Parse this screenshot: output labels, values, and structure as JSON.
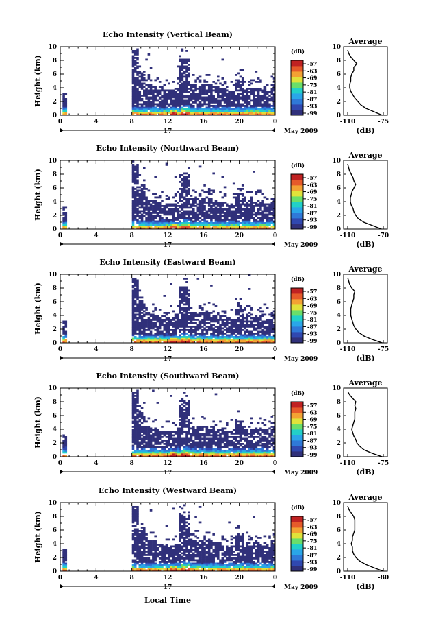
{
  "chart_data": {
    "type": "heatmap",
    "x_label": "Local Time",
    "date_label": "May 2009",
    "day_label": "17",
    "x_ticks": [
      "0",
      "4",
      "8",
      "12",
      "16",
      "20",
      "0"
    ],
    "y_ticks": [
      "0",
      "2",
      "4",
      "6",
      "8",
      "10"
    ],
    "y_label": "Height (km)",
    "xlim": [
      0,
      24
    ],
    "ylim": [
      0,
      10
    ],
    "colorbar": {
      "unit": "(dB)",
      "ticks": [
        "-57",
        "-63",
        "-69",
        "-75",
        "-81",
        "-87",
        "-93",
        "-99"
      ]
    },
    "average_title": "Average",
    "average_xlabel": "(dB)",
    "panels": [
      {
        "title": "Echo Intensity (Vertical Beam)",
        "avg_ticks": [
          "-110",
          "-75"
        ],
        "avg_profile": [
          [
            0,
            -76
          ],
          [
            0.5,
            -84
          ],
          [
            1,
            -92
          ],
          [
            1.5,
            -97
          ],
          [
            2,
            -100
          ],
          [
            2.5,
            -103
          ],
          [
            3,
            -105
          ],
          [
            3.5,
            -107
          ],
          [
            4,
            -108
          ],
          [
            4.5,
            -108
          ],
          [
            5,
            -107
          ],
          [
            5.5,
            -107
          ],
          [
            6,
            -106
          ],
          [
            6.5,
            -104
          ],
          [
            7,
            -104
          ],
          [
            7.5,
            -101
          ],
          [
            8,
            -104
          ],
          [
            8.5,
            -107
          ],
          [
            9,
            -109
          ],
          [
            9.5,
            -110
          ]
        ]
      },
      {
        "title": "Echo Intensity (Northward Beam)",
        "avg_ticks": [
          "-110",
          "-70"
        ],
        "avg_profile": [
          [
            0,
            -72
          ],
          [
            0.5,
            -82
          ],
          [
            1,
            -92
          ],
          [
            1.5,
            -98
          ],
          [
            2,
            -101
          ],
          [
            2.5,
            -103
          ],
          [
            3,
            -104
          ],
          [
            3.5,
            -106
          ],
          [
            4,
            -107
          ],
          [
            4.5,
            -107
          ],
          [
            5,
            -106
          ],
          [
            5.5,
            -105
          ],
          [
            6,
            -103
          ],
          [
            6.5,
            -101
          ],
          [
            7,
            -103
          ],
          [
            7.5,
            -104
          ],
          [
            8,
            -106
          ],
          [
            8.5,
            -108
          ],
          [
            9,
            -109
          ],
          [
            9.5,
            -110
          ]
        ]
      },
      {
        "title": "Echo Intensity (Eastward Beam)",
        "avg_ticks": [
          "-110",
          "-75"
        ],
        "avg_profile": [
          [
            0,
            -76
          ],
          [
            0.5,
            -86
          ],
          [
            1,
            -94
          ],
          [
            1.5,
            -99
          ],
          [
            2,
            -102
          ],
          [
            2.5,
            -104
          ],
          [
            3,
            -105
          ],
          [
            3.5,
            -106
          ],
          [
            4,
            -107
          ],
          [
            4.5,
            -107
          ],
          [
            5,
            -107
          ],
          [
            5.5,
            -106
          ],
          [
            6,
            -105
          ],
          [
            6.5,
            -104
          ],
          [
            7,
            -104
          ],
          [
            7.5,
            -103
          ],
          [
            8,
            -106
          ],
          [
            8.5,
            -108
          ],
          [
            9,
            -109
          ],
          [
            9.5,
            -110
          ]
        ]
      },
      {
        "title": "Echo Intensity (Southward Beam)",
        "avg_ticks": [
          "-110",
          "-75"
        ],
        "avg_profile": [
          [
            0,
            -76
          ],
          [
            0.5,
            -86
          ],
          [
            1,
            -94
          ],
          [
            1.5,
            -98
          ],
          [
            2,
            -101
          ],
          [
            2.5,
            -102
          ],
          [
            3,
            -104
          ],
          [
            3.5,
            -105
          ],
          [
            4,
            -106
          ],
          [
            4.5,
            -105
          ],
          [
            5,
            -104
          ],
          [
            5.5,
            -103
          ],
          [
            6,
            -103
          ],
          [
            6.5,
            -103
          ],
          [
            7,
            -102
          ],
          [
            7.5,
            -103
          ],
          [
            8,
            -102
          ],
          [
            8.5,
            -105
          ],
          [
            9,
            -108
          ],
          [
            9.5,
            -110
          ]
        ]
      },
      {
        "title": "Echo Intensity (Westward Beam)",
        "avg_ticks": [
          "-110",
          "-80"
        ],
        "avg_profile": [
          [
            0,
            -80
          ],
          [
            0.5,
            -88
          ],
          [
            1,
            -95
          ],
          [
            1.5,
            -100
          ],
          [
            2,
            -103
          ],
          [
            2.5,
            -105
          ],
          [
            3,
            -106
          ],
          [
            3.5,
            -106
          ],
          [
            4,
            -107
          ],
          [
            4.5,
            -106
          ],
          [
            5,
            -106
          ],
          [
            5.5,
            -105
          ],
          [
            6,
            -104
          ],
          [
            6.5,
            -104
          ],
          [
            7,
            -104
          ],
          [
            7.5,
            -104
          ],
          [
            8,
            -105
          ],
          [
            8.5,
            -107
          ],
          [
            9,
            -109
          ],
          [
            9.5,
            -110
          ]
        ]
      }
    ]
  }
}
